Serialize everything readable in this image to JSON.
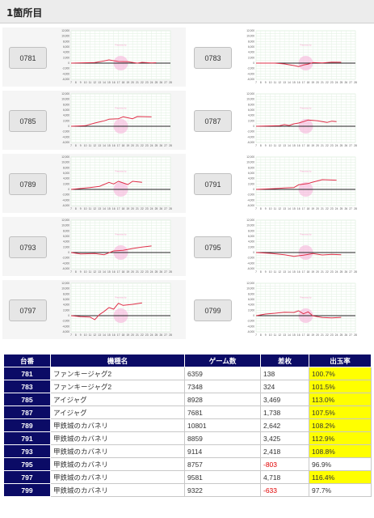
{
  "page": {
    "title": "1箇所目"
  },
  "watermark": "Presented by",
  "axis": {
    "y_ticks": [
      "12,000",
      "10,000",
      "8,000",
      "6,000",
      "4,000",
      "2,000",
      "0",
      "-2,000",
      "-4,000",
      "-6,000"
    ],
    "x_ticks": [
      "7",
      "8",
      "9",
      "10",
      "11",
      "12",
      "13",
      "14",
      "15",
      "16",
      "17",
      "18",
      "19",
      "20",
      "21",
      "22",
      "23",
      "24",
      "25",
      "26",
      "27",
      "28"
    ]
  },
  "colors": {
    "header_bg": "#0b0b66",
    "highlight": "#ffff00",
    "negative": "#e00000",
    "line": "#e0304a",
    "watermark": "#f6b4da"
  },
  "units": [
    {
      "id": "0781",
      "series": [
        [
          7,
          0
        ],
        [
          12,
          200
        ],
        [
          14,
          800
        ],
        [
          15,
          1200
        ],
        [
          16,
          900
        ],
        [
          17,
          600
        ],
        [
          19,
          500
        ],
        [
          21,
          0
        ],
        [
          22,
          300
        ],
        [
          24,
          100
        ],
        [
          25,
          138
        ]
      ]
    },
    {
      "id": "0783",
      "series": [
        [
          7,
          0
        ],
        [
          11,
          0
        ],
        [
          13,
          -300
        ],
        [
          15,
          -900
        ],
        [
          16,
          -1300
        ],
        [
          17,
          -700
        ],
        [
          18,
          -400
        ],
        [
          19,
          200
        ],
        [
          21,
          100
        ],
        [
          23,
          400
        ],
        [
          25,
          324
        ]
      ]
    },
    {
      "id": "0785",
      "series": [
        [
          7,
          0
        ],
        [
          10,
          200
        ],
        [
          12,
          1200
        ],
        [
          14,
          2000
        ],
        [
          15,
          2600
        ],
        [
          17,
          2800
        ],
        [
          18,
          3500
        ],
        [
          20,
          2800
        ],
        [
          21,
          3600
        ],
        [
          24,
          3469
        ]
      ]
    },
    {
      "id": "0787",
      "series": [
        [
          7,
          0
        ],
        [
          12,
          200
        ],
        [
          13,
          600
        ],
        [
          14,
          300
        ],
        [
          15,
          900
        ],
        [
          16,
          1200
        ],
        [
          17,
          1700
        ],
        [
          18,
          2300
        ],
        [
          20,
          2000
        ],
        [
          22,
          1400
        ],
        [
          23,
          1900
        ],
        [
          24,
          1738
        ]
      ]
    },
    {
      "id": "0789",
      "series": [
        [
          7,
          0
        ],
        [
          11,
          700
        ],
        [
          13,
          1100
        ],
        [
          15,
          2600
        ],
        [
          16,
          2000
        ],
        [
          17,
          3000
        ],
        [
          19,
          1800
        ],
        [
          20,
          3000
        ],
        [
          22,
          2642
        ]
      ]
    },
    {
      "id": "0791",
      "series": [
        [
          7,
          0
        ],
        [
          11,
          300
        ],
        [
          13,
          500
        ],
        [
          15,
          700
        ],
        [
          16,
          1700
        ],
        [
          18,
          2200
        ],
        [
          19,
          2700
        ],
        [
          21,
          3600
        ],
        [
          24,
          3425
        ]
      ]
    },
    {
      "id": "0793",
      "series": [
        [
          7,
          0
        ],
        [
          9,
          -500
        ],
        [
          12,
          -400
        ],
        [
          14,
          -800
        ],
        [
          16,
          600
        ],
        [
          18,
          800
        ],
        [
          20,
          1500
        ],
        [
          22,
          2000
        ],
        [
          24,
          2418
        ]
      ]
    },
    {
      "id": "0795",
      "series": [
        [
          7,
          0
        ],
        [
          10,
          -300
        ],
        [
          13,
          -800
        ],
        [
          15,
          -1400
        ],
        [
          17,
          -1000
        ],
        [
          19,
          -400
        ],
        [
          21,
          -900
        ],
        [
          23,
          -700
        ],
        [
          25,
          -803
        ]
      ]
    },
    {
      "id": "0797",
      "series": [
        [
          7,
          0
        ],
        [
          9,
          -400
        ],
        [
          11,
          -500
        ],
        [
          12,
          -1500
        ],
        [
          13,
          400
        ],
        [
          14,
          1600
        ],
        [
          15,
          3000
        ],
        [
          16,
          2400
        ],
        [
          17,
          4600
        ],
        [
          18,
          3800
        ],
        [
          20,
          4200
        ],
        [
          22,
          4718
        ]
      ]
    },
    {
      "id": "0799",
      "series": [
        [
          7,
          0
        ],
        [
          9,
          600
        ],
        [
          11,
          900
        ],
        [
          13,
          1300
        ],
        [
          15,
          1200
        ],
        [
          16,
          1800
        ],
        [
          17,
          700
        ],
        [
          18,
          1400
        ],
        [
          19,
          -100
        ],
        [
          21,
          -700
        ],
        [
          23,
          -800
        ],
        [
          25,
          -633
        ]
      ]
    }
  ],
  "table": {
    "headers": [
      "台番",
      "機種名",
      "ゲーム数",
      "差枚",
      "出玉率"
    ],
    "rows": [
      {
        "unit": "781",
        "model": "ファンキージャグ2",
        "games": "6359",
        "diff": "138",
        "rate": "100.7%",
        "negative": false,
        "highlight": true
      },
      {
        "unit": "783",
        "model": "ファンキージャグ2",
        "games": "7348",
        "diff": "324",
        "rate": "101.5%",
        "negative": false,
        "highlight": true
      },
      {
        "unit": "785",
        "model": "アイジャグ",
        "games": "8928",
        "diff": "3,469",
        "rate": "113.0%",
        "negative": false,
        "highlight": true
      },
      {
        "unit": "787",
        "model": "アイジャグ",
        "games": "7681",
        "diff": "1,738",
        "rate": "107.5%",
        "negative": false,
        "highlight": true
      },
      {
        "unit": "789",
        "model": "甲鉄城のカバネリ",
        "games": "10801",
        "diff": "2,642",
        "rate": "108.2%",
        "negative": false,
        "highlight": true
      },
      {
        "unit": "791",
        "model": "甲鉄城のカバネリ",
        "games": "8859",
        "diff": "3,425",
        "rate": "112.9%",
        "negative": false,
        "highlight": true
      },
      {
        "unit": "793",
        "model": "甲鉄城のカバネリ",
        "games": "9114",
        "diff": "2,418",
        "rate": "108.8%",
        "negative": false,
        "highlight": true
      },
      {
        "unit": "795",
        "model": "甲鉄城のカバネリ",
        "games": "8757",
        "diff": "-803",
        "rate": "96.9%",
        "negative": true,
        "highlight": false
      },
      {
        "unit": "797",
        "model": "甲鉄城のカバネリ",
        "games": "9581",
        "diff": "4,718",
        "rate": "116.4%",
        "negative": false,
        "highlight": true
      },
      {
        "unit": "799",
        "model": "甲鉄城のカバネリ",
        "games": "9322",
        "diff": "-633",
        "rate": "97.7%",
        "negative": true,
        "highlight": false
      }
    ]
  }
}
